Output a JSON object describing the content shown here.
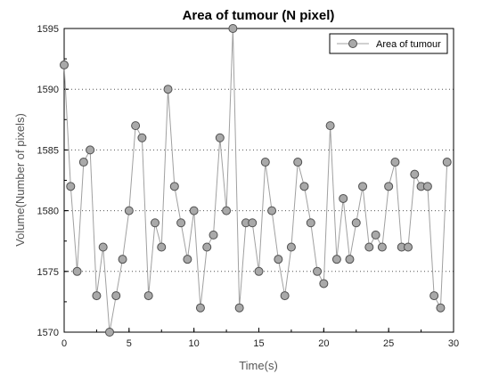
{
  "chart_data": {
    "type": "line",
    "title": "Area of tumour (N pixel)",
    "xlabel": "Time(s)",
    "ylabel": "Volume(Number of pixels)",
    "xlim": [
      0,
      30
    ],
    "ylim": [
      1570,
      1595
    ],
    "xticks": [
      0,
      5,
      10,
      15,
      20,
      25,
      30
    ],
    "yticks": [
      1570,
      1575,
      1580,
      1585,
      1590,
      1595
    ],
    "grid": "horizontal dotted",
    "legend_position": "top-right",
    "series": [
      {
        "name": "Area of tumour",
        "color": "#a0a0a0",
        "marker": "circle",
        "x": [
          0,
          0.5,
          1,
          1.5,
          2,
          2.5,
          3,
          3.5,
          4,
          4.5,
          5,
          5.5,
          6,
          6.5,
          7,
          7.5,
          8,
          8.5,
          9,
          9.5,
          10,
          10.5,
          11,
          11.5,
          12,
          12.5,
          13,
          13.5,
          14,
          14.5,
          15,
          15.5,
          16,
          16.5,
          17,
          17.5,
          18,
          18.5,
          19,
          19.5,
          20,
          20.5,
          21,
          21.5,
          22,
          22.5,
          23,
          23.5,
          24,
          24.5,
          25,
          25.5,
          26,
          26.5,
          27,
          27.5,
          28,
          28.5,
          29,
          29.5
        ],
        "values": [
          1592,
          1582,
          1575,
          1584,
          1585,
          1573,
          1577,
          1570,
          1573,
          1576,
          1580,
          1587,
          1586,
          1573,
          1579,
          1577,
          1590,
          1582,
          1579,
          1576,
          1580,
          1572,
          1577,
          1578,
          1586,
          1580,
          1595,
          1572,
          1579,
          1579,
          1575,
          1584,
          1580,
          1576,
          1573,
          1577,
          1584,
          1582,
          1579,
          1575,
          1574,
          1587,
          1576,
          1581,
          1576,
          1579,
          1582,
          1577,
          1578,
          1577,
          1582,
          1584,
          1577,
          1577,
          1583,
          1582,
          1582,
          1573,
          1572,
          1584
        ]
      }
    ]
  }
}
